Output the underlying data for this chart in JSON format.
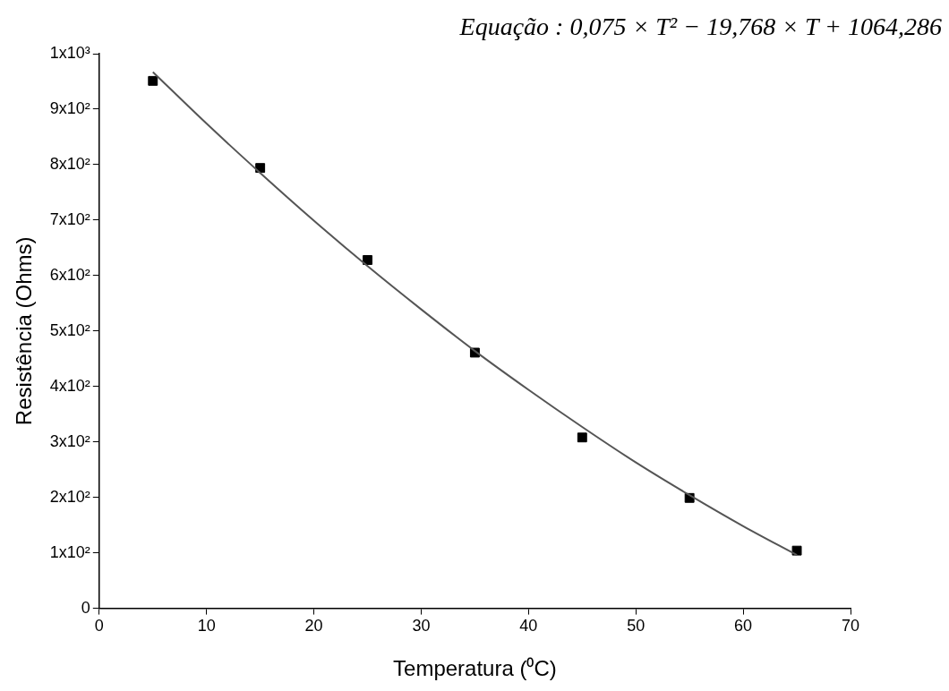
{
  "chart_data": {
    "type": "scatter",
    "annotations": [
      "Equação : 0,075 × T² − 19,768 × T + 1064,286"
    ],
    "xlabel": "Temperatura (⁰C)",
    "ylabel": "Resistência (Ohms)",
    "xlim": [
      0,
      70
    ],
    "xticks": [
      0,
      10,
      20,
      30,
      40,
      50,
      60,
      70
    ],
    "ylim": [
      0,
      1000
    ],
    "yticks": [
      0,
      {
        "value": 100,
        "label": "1x10²"
      },
      {
        "value": 200,
        "label": "2x10²"
      },
      {
        "value": 300,
        "label": "3x10²"
      },
      {
        "value": 400,
        "label": "4x10²"
      },
      {
        "value": 500,
        "label": "5x10²"
      },
      {
        "value": 600,
        "label": "6x10²"
      },
      {
        "value": 700,
        "label": "7x10²"
      },
      {
        "value": 800,
        "label": "8x10²"
      },
      {
        "value": 900,
        "label": "9x10²"
      },
      {
        "value": 1000,
        "label": "1x10³"
      }
    ],
    "grid": false,
    "legend": false,
    "series": [
      {
        "type": "scatter",
        "color": "#000000",
        "marker": "square",
        "x": [
          5,
          15,
          25,
          35,
          45,
          55,
          65
        ],
        "values": [
          951,
          794,
          628,
          461,
          308,
          199,
          104
        ]
      },
      {
        "type": "line",
        "color": "#555555",
        "marker": "none",
        "line_style": "solid",
        "x": [
          5,
          10,
          15,
          20,
          25,
          30,
          35,
          40,
          45,
          50,
          55,
          60,
          65
        ],
        "values": [
          967,
          874,
          785,
          699,
          617,
          539,
          464,
          394,
          327,
          263,
          204,
          148,
          96
        ]
      }
    ]
  }
}
